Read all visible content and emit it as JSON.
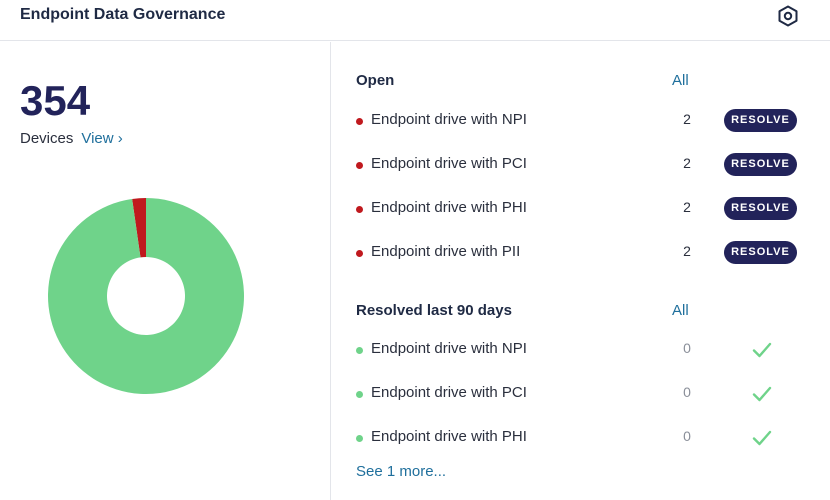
{
  "header": {
    "title": "Endpoint Data Governance",
    "settings_icon": "settings-hex-icon"
  },
  "summary": {
    "count": "354",
    "label": "Devices",
    "view_link": "View ›"
  },
  "chart_data": {
    "type": "pie",
    "donut": true,
    "slices": [
      {
        "value": 346,
        "color": "#6fd38a"
      },
      {
        "value": 8,
        "color": "#c0191e"
      }
    ]
  },
  "open": {
    "title": "Open",
    "all_link": "All",
    "button_label": "RESOLVE",
    "items": [
      {
        "label": "Endpoint drive with NPI",
        "count": "2"
      },
      {
        "label": "Endpoint drive with PCI",
        "count": "2"
      },
      {
        "label": "Endpoint drive with PHI",
        "count": "2"
      },
      {
        "label": "Endpoint drive with PII",
        "count": "2"
      }
    ]
  },
  "resolved": {
    "title": "Resolved last 90 days",
    "all_link": "All",
    "items": [
      {
        "label": "Endpoint drive with NPI",
        "count": "0"
      },
      {
        "label": "Endpoint drive with PCI",
        "count": "0"
      },
      {
        "label": "Endpoint drive with PHI",
        "count": "0"
      }
    ],
    "see_more": "See 1 more..."
  },
  "colors": {
    "accent": "#22235a",
    "link": "#1f6f9c",
    "open_dot": "#c0191e",
    "resolved": "#6fd38a"
  }
}
